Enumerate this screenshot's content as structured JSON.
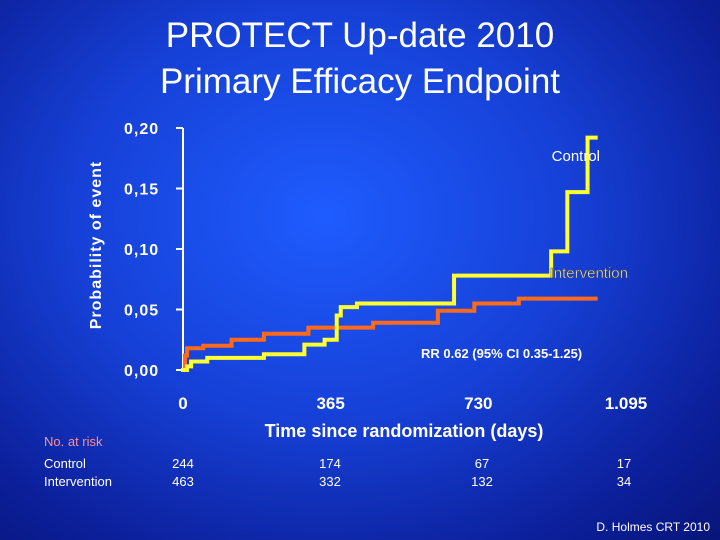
{
  "slide": {
    "title_line1": "PROTECT Up-date 2010",
    "title_line2": "Primary Efficacy Endpoint",
    "credit": "D. Holmes CRT 2010"
  },
  "chart_data": {
    "type": "line",
    "ylabel": "Probability of event",
    "xlabel": "Time since randomization (days)",
    "ylim": [
      0,
      0.2
    ],
    "xlim": [
      0,
      1095
    ],
    "y_ticks": [
      0.0,
      0.05,
      0.1,
      0.15,
      0.2
    ],
    "y_tick_labels": [
      "0,00",
      "0,05",
      "0,10",
      "0,15",
      "0,20"
    ],
    "x_ticks": [
      0,
      365,
      730,
      1095
    ],
    "x_tick_labels": [
      "0",
      "365",
      "730",
      "1.095"
    ],
    "annotation": "RR 0.62 (95% CI 0.35-1.25)",
    "colors": {
      "control": "#ffff33",
      "intervention": "#ff6a1a",
      "axis": "#ffffff"
    },
    "series": [
      {
        "name": "Control",
        "step_points": [
          [
            0,
            0.0
          ],
          [
            10,
            0.003
          ],
          [
            20,
            0.007
          ],
          [
            60,
            0.01
          ],
          [
            200,
            0.013
          ],
          [
            300,
            0.021
          ],
          [
            350,
            0.025
          ],
          [
            380,
            0.045
          ],
          [
            390,
            0.052
          ],
          [
            430,
            0.055
          ],
          [
            670,
            0.078
          ],
          [
            910,
            0.098
          ],
          [
            950,
            0.147
          ],
          [
            1000,
            0.192
          ],
          [
            1020,
            0.192
          ]
        ]
      },
      {
        "name": "Intervention",
        "step_points": [
          [
            0,
            0.0
          ],
          [
            5,
            0.012
          ],
          [
            10,
            0.018
          ],
          [
            50,
            0.02
          ],
          [
            120,
            0.025
          ],
          [
            200,
            0.03
          ],
          [
            310,
            0.035
          ],
          [
            470,
            0.039
          ],
          [
            630,
            0.049
          ],
          [
            720,
            0.055
          ],
          [
            830,
            0.059
          ],
          [
            1020,
            0.059
          ]
        ]
      }
    ]
  },
  "risk_table": {
    "header": "No. at risk",
    "row_labels": [
      "Control",
      "Intervention"
    ],
    "columns": [
      {
        "control": "244",
        "intervention": "463"
      },
      {
        "control": "174",
        "intervention": "332"
      },
      {
        "control": "67",
        "intervention": "132"
      },
      {
        "control": "17",
        "intervention": "34"
      }
    ]
  }
}
